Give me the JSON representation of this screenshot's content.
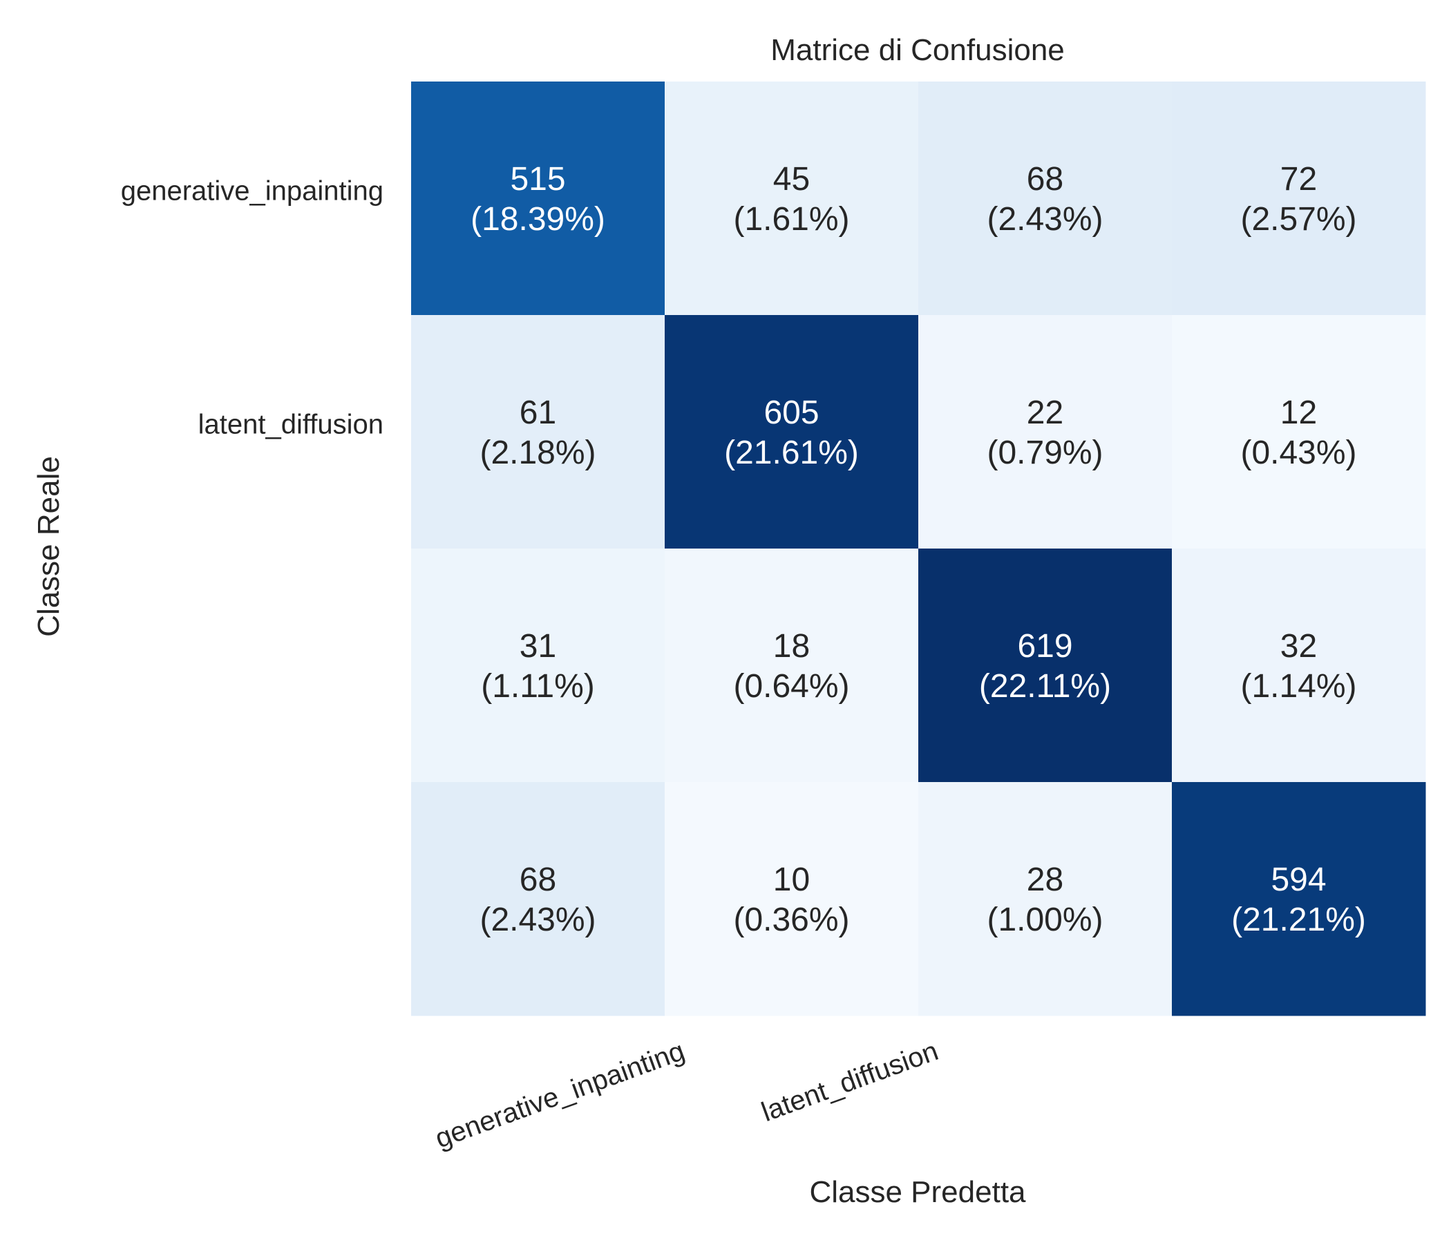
{
  "chart_data": {
    "type": "heatmap",
    "title": "Matrice di Confusione",
    "xlabel": "Classe Predetta",
    "ylabel": "Classe Reale",
    "x_tick_labels": [
      "generative_inpainting",
      "latent_diffusion",
      "",
      ""
    ],
    "y_tick_labels": [
      "generative_inpainting",
      "latent_diffusion",
      "",
      ""
    ],
    "colormap": "Blues",
    "value_range": [
      0,
      619
    ],
    "values": [
      [
        515,
        45,
        68,
        72
      ],
      [
        61,
        605,
        22,
        12
      ],
      [
        31,
        18,
        619,
        32
      ],
      [
        68,
        10,
        28,
        594
      ]
    ],
    "cell_text": [
      [
        [
          "515",
          "(18.39%)"
        ],
        [
          "45",
          "(1.61%)"
        ],
        [
          "68",
          "(2.43%)"
        ],
        [
          "72",
          "(2.57%)"
        ]
      ],
      [
        [
          "61",
          "(2.18%)"
        ],
        [
          "605",
          "(21.61%)"
        ],
        [
          "22",
          "(0.79%)"
        ],
        [
          "12",
          "(0.43%)"
        ]
      ],
      [
        [
          "31",
          "(1.11%)"
        ],
        [
          "18",
          "(0.64%)"
        ],
        [
          "619",
          "(22.11%)"
        ],
        [
          "32",
          "(1.14%)"
        ]
      ],
      [
        [
          "68",
          "(2.43%)"
        ],
        [
          "10",
          "(0.36%)"
        ],
        [
          "28",
          "(1.00%)"
        ],
        [
          "594",
          "(21.21%)"
        ]
      ]
    ],
    "colorbar": false,
    "grid": false
  }
}
